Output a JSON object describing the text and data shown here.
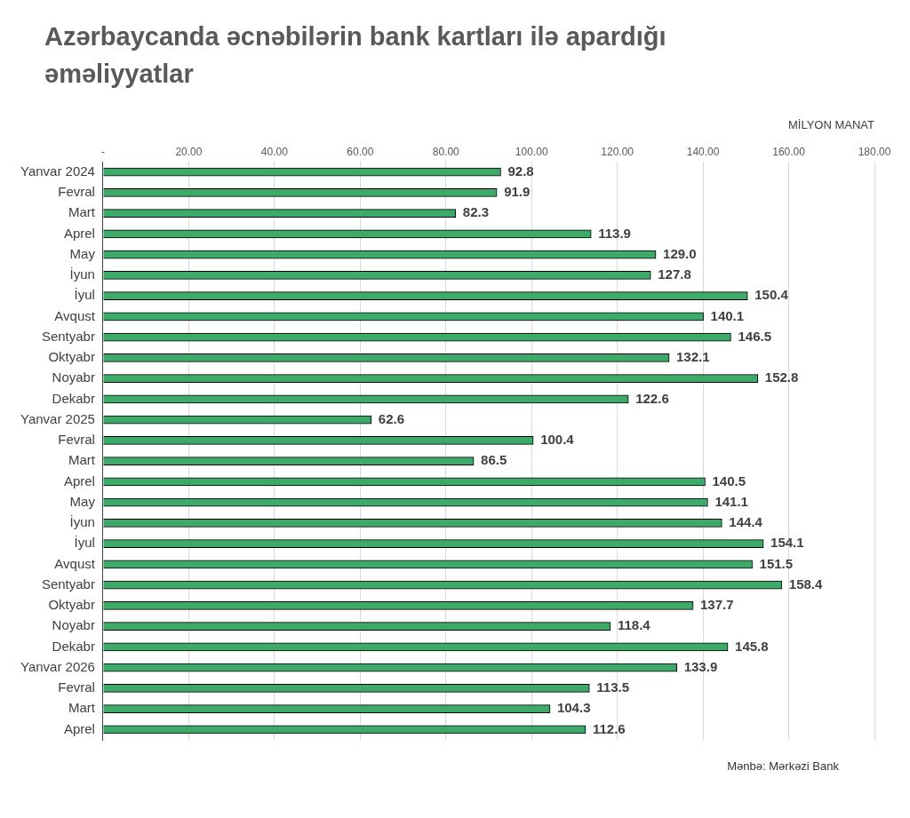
{
  "chart_data": {
    "type": "bar",
    "orientation": "horizontal",
    "title": "Azərbaycanda əcnəbilərin bank kartları ilə apardığı əməliyyatlar",
    "xlabel": "MİLYON MANAT",
    "categories": [
      "Yanvar 2024",
      "Fevral",
      "Mart",
      "Aprel",
      "May",
      "İyun",
      "İyul",
      "Avqust",
      "Sentyabr",
      "Oktyabr",
      "Noyabr",
      "Dekabr",
      "Yanvar 2025",
      "Fevral",
      "Mart",
      "Aprel",
      "May",
      "İyun",
      "İyul",
      "Avqust",
      "Sentyabr",
      "Oktyabr",
      "Noyabr",
      "Dekabr",
      "Yanvar 2026",
      "Fevral",
      "Mart",
      "Aprel"
    ],
    "values": [
      92.8,
      91.9,
      82.3,
      113.9,
      129.0,
      127.8,
      150.4,
      140.1,
      146.5,
      132.1,
      152.8,
      122.6,
      62.6,
      100.4,
      86.5,
      140.5,
      141.1,
      144.4,
      154.1,
      151.5,
      158.4,
      137.7,
      118.4,
      145.8,
      133.9,
      113.5,
      104.3,
      112.6
    ],
    "value_labels": [
      "92.8",
      "91.9",
      "82.3",
      "113.9",
      "129.0",
      "127.8",
      "150.4",
      "140.1",
      "146.5",
      "132.1",
      "152.8",
      "122.6",
      "62.6",
      "100.4",
      "86.5",
      "140.5",
      "141.1",
      "144.4",
      "154.1",
      "151.5",
      "158.4",
      "137.7",
      "118.4",
      "145.8",
      "133.9",
      "113.5",
      "104.3",
      "112.6"
    ],
    "color": "#3daa6a",
    "xlim": [
      0,
      180
    ],
    "xticks": [
      {
        "value": 0,
        "label": "-"
      },
      {
        "value": 20,
        "label": "20.00"
      },
      {
        "value": 40,
        "label": "40.00"
      },
      {
        "value": 60,
        "label": "60.00"
      },
      {
        "value": 80,
        "label": "80.00"
      },
      {
        "value": 100,
        "label": "100.00"
      },
      {
        "value": 120,
        "label": "120.00"
      },
      {
        "value": 140,
        "label": "140.00"
      },
      {
        "value": 160,
        "label": "160.00"
      },
      {
        "value": 180,
        "label": "180.00"
      }
    ],
    "grid": "x",
    "annotations": [
      "Mənbə: Mərkəzi Bank"
    ]
  }
}
